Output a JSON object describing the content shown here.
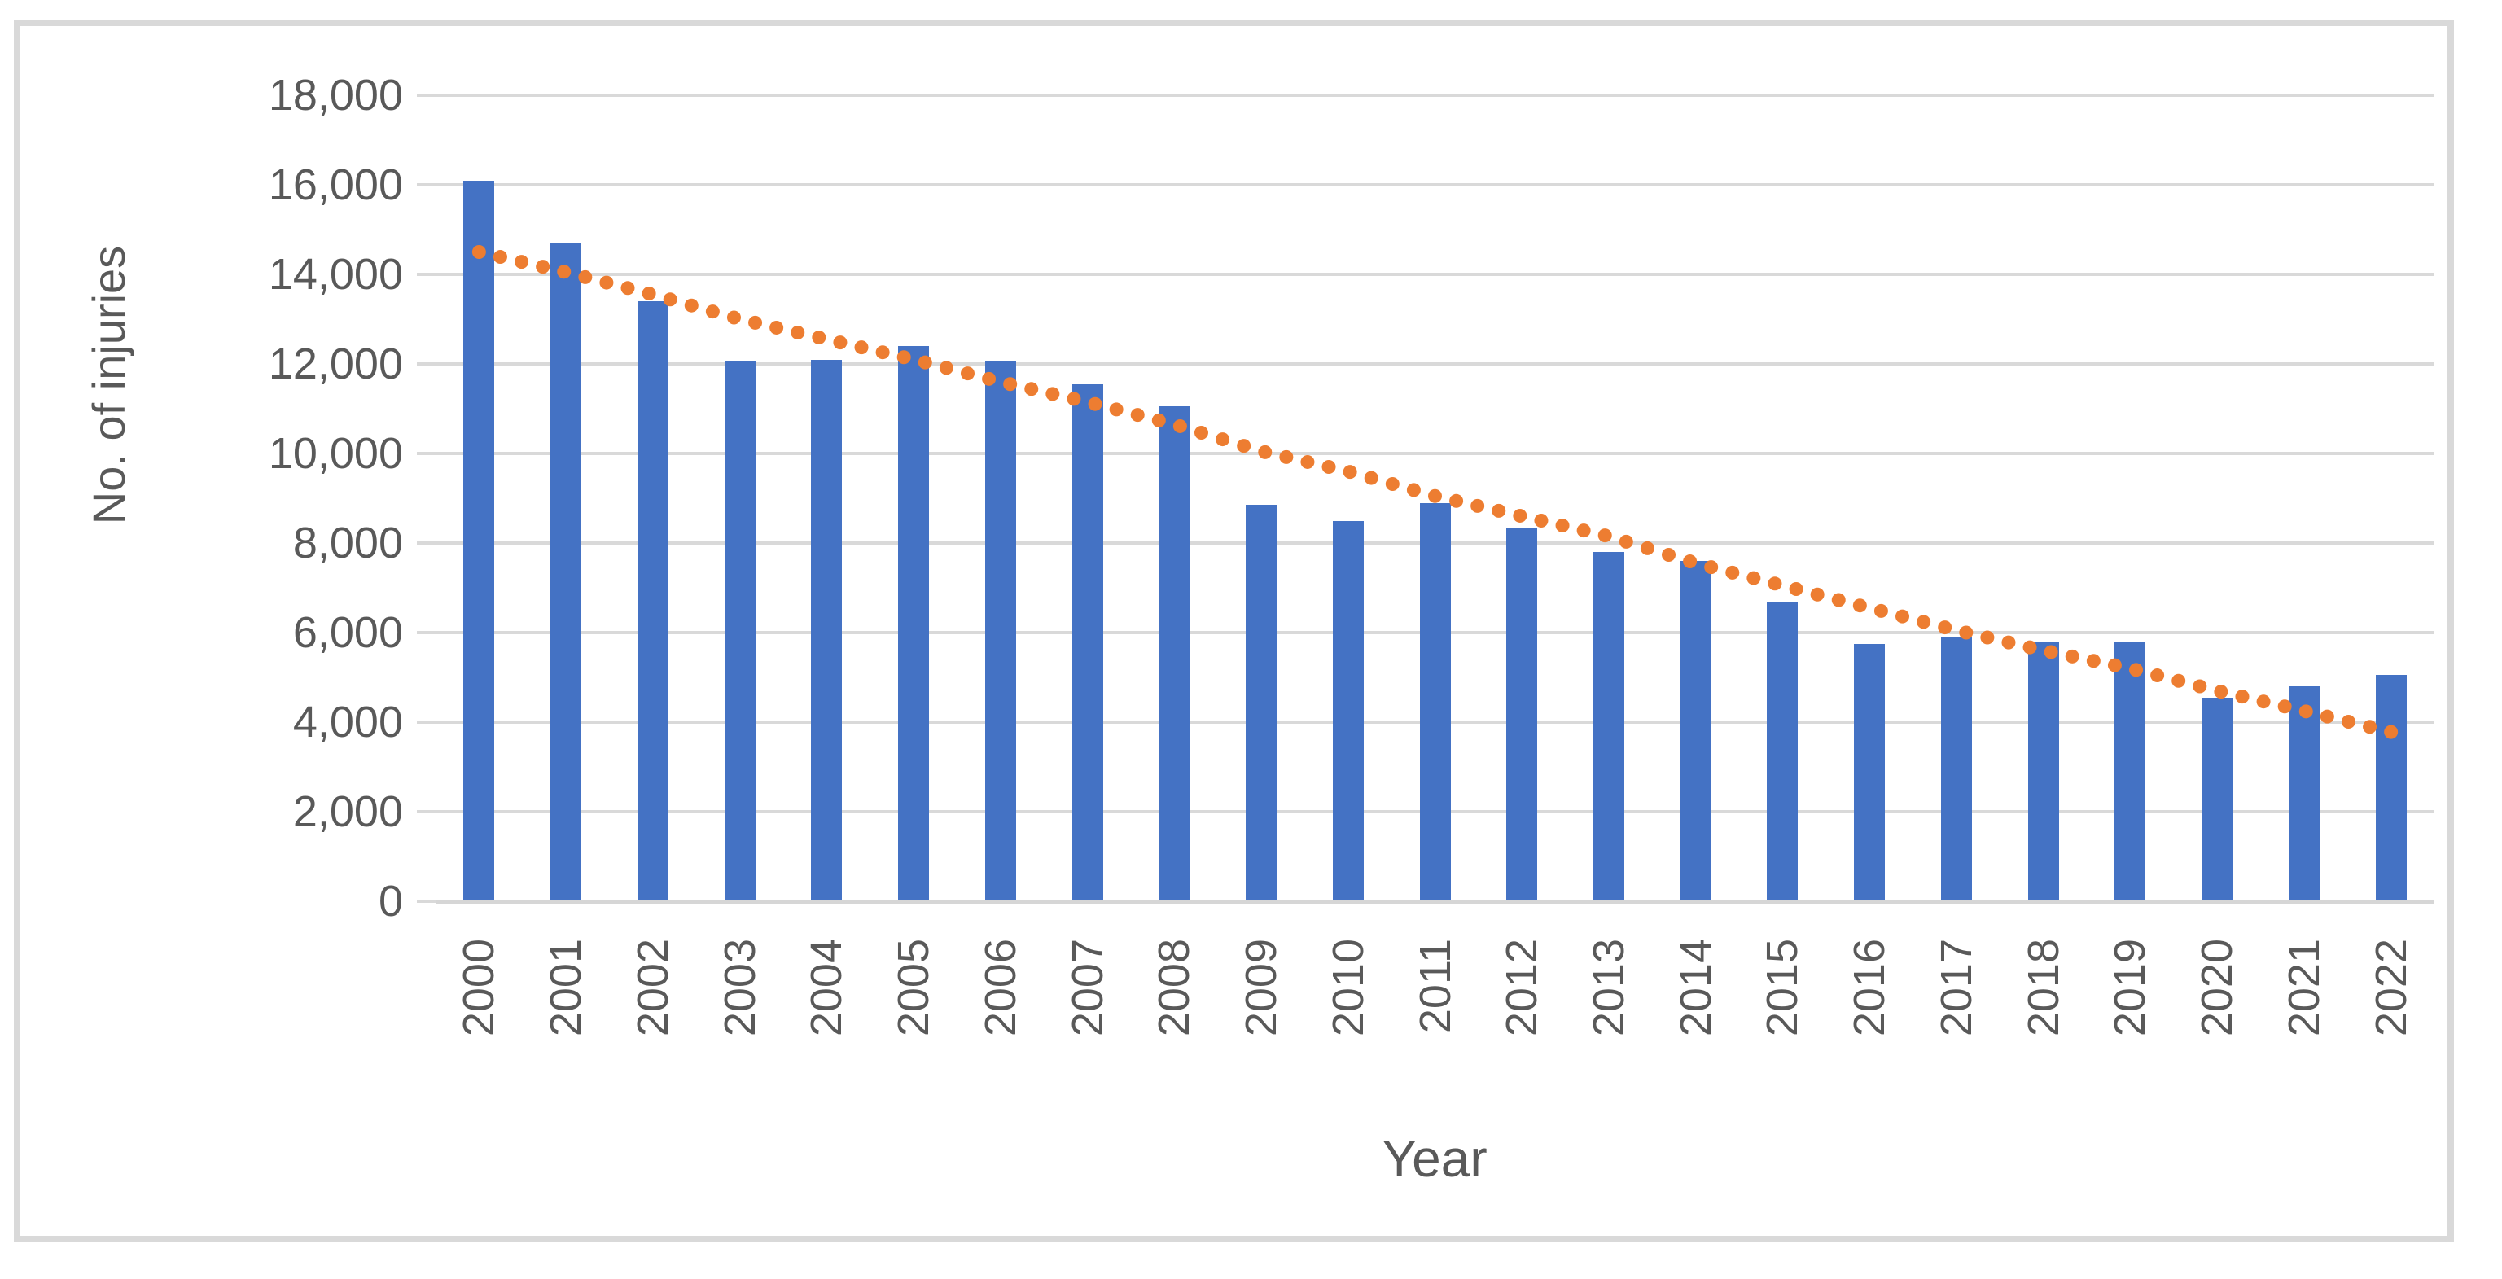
{
  "chart_data": {
    "type": "bar",
    "title": "",
    "xlabel": "Year",
    "ylabel": "No. of injuries",
    "categories": [
      "2000",
      "2001",
      "2002",
      "2003",
      "2004",
      "2005",
      "2006",
      "2007",
      "2008",
      "2009",
      "2010",
      "2011",
      "2012",
      "2013",
      "2014",
      "2015",
      "2016",
      "2017",
      "2018",
      "2019",
      "2020",
      "2021",
      "2022"
    ],
    "series": [
      {
        "name": "No. of injuries",
        "type": "bar",
        "color": "#4472C4",
        "values": [
          16100,
          14700,
          13400,
          12050,
          12100,
          12400,
          12050,
          11550,
          11050,
          8850,
          8500,
          8900,
          8350,
          7800,
          7600,
          6700,
          5750,
          5900,
          5800,
          5800,
          4550,
          4800,
          5050
        ]
      },
      {
        "name": "trendline",
        "type": "dotted-line",
        "color": "#ED7D31",
        "values": [
          14500,
          14050,
          13550,
          13000,
          12550,
          12100,
          11600,
          11150,
          10650,
          10050,
          9600,
          9050,
          8600,
          8150,
          7550,
          7050,
          6550,
          6050,
          5600,
          5200,
          4700,
          4250,
          3780
        ]
      }
    ],
    "ylim": [
      0,
      18000
    ],
    "ytick_step": 2000,
    "ytick_labels": [
      "0",
      "2,000",
      "4,000",
      "6,000",
      "8,000",
      "10,000",
      "12,000",
      "14,000",
      "16,000",
      "18,000"
    ],
    "grid": true,
    "legend_position": "none",
    "colors": {
      "bar": "#4472C4",
      "trend": "#ED7D31",
      "gridline": "#D9D9D9",
      "text": "#595959",
      "frame": "#D9D9D9"
    }
  }
}
